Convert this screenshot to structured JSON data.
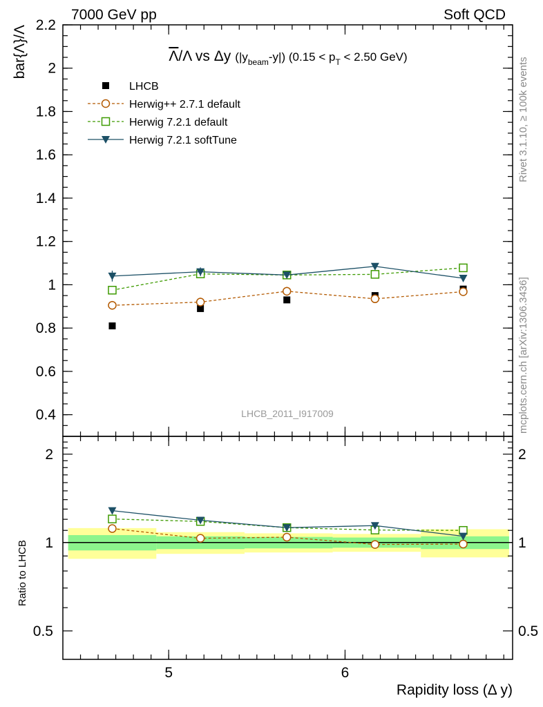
{
  "header": {
    "left": "7000 GeV pp",
    "right": "Soft QCD"
  },
  "side_labels": {
    "rivet": "Rivet 3.1.10, ≥ 100k events",
    "mcplots": "mcplots.cern.ch [arXiv:1306.3436]"
  },
  "watermark": "LHCB_2011_I917009",
  "colors": {
    "data": "#000000",
    "herwig_pp": "#b35900",
    "herwig_default": "#3d9a00",
    "herwig_soft": "#1c5066",
    "band_inner": "#8cf58c",
    "band_outer": "#ffff99"
  },
  "chart_data": {
    "type": "scatter",
    "title": {
      "ratio_bar": "Λ",
      "ratio_slash": "/Λ vs ",
      "delta": "Δy",
      "paren_open": "(|y",
      "sub_beam": "beam",
      "paren_mid": "-y|) (0.15 < p",
      "sub_T": "T",
      "paren_close": " < 2.50 GeV)"
    },
    "xlabel": "Rapidity loss (Δ y)",
    "ylabel": "bar{Λ}/Λ",
    "ratio_ylabel": "Ratio to LHCB",
    "xlim": [
      4.4,
      6.95
    ],
    "ylim": [
      0.3,
      2.2
    ],
    "ratio_ylim": [
      0.4,
      2.3
    ],
    "ratio_log_scale": true,
    "x_ticks": [
      5,
      6
    ],
    "x_tick_labels": [
      "5",
      "6"
    ],
    "y_ticks": [
      0.4,
      0.6,
      0.8,
      1,
      1.2,
      1.4,
      1.6,
      1.8,
      2,
      2.2
    ],
    "y_tick_labels": [
      "0.4",
      "0.6",
      "0.8",
      "1",
      "1.2",
      "1.4",
      "1.6",
      "1.8",
      "2",
      "2.2"
    ],
    "ratio_ticks": [
      0.5,
      1,
      2
    ],
    "ratio_tick_labels": [
      "0.5",
      "1",
      "2"
    ],
    "x": [
      4.68,
      5.18,
      5.67,
      6.17,
      6.67
    ],
    "bin_edges": [
      4.43,
      4.93,
      5.43,
      5.93,
      6.43,
      6.93
    ],
    "series": [
      {
        "name": "LHCB",
        "values": [
          0.81,
          0.89,
          0.93,
          0.95,
          0.98
        ],
        "errors": [
          0.01,
          0.01,
          0.01,
          0.01,
          0.01
        ],
        "marker": "square-filled",
        "line": "none"
      },
      {
        "name": "Herwig++ 2.7.1 default",
        "values": [
          0.905,
          0.92,
          0.97,
          0.935,
          0.968
        ],
        "errors": [
          0.02,
          0.02,
          0.02,
          0.015,
          0.015
        ],
        "ratio": [
          1.116,
          1.034,
          1.043,
          0.985,
          0.988
        ],
        "marker": "circle-open",
        "line": "dashed"
      },
      {
        "name": "Herwig 7.2.1 default",
        "values": [
          0.975,
          1.05,
          1.045,
          1.048,
          1.078
        ],
        "errors": [
          0.02,
          0.02,
          0.015,
          0.015,
          0.015
        ],
        "ratio": [
          1.203,
          1.18,
          1.124,
          1.103,
          1.1
        ],
        "marker": "square-open",
        "line": "dashed"
      },
      {
        "name": "Herwig 7.2.1 softTune",
        "values": [
          1.04,
          1.06,
          1.045,
          1.085,
          1.03
        ],
        "errors": [
          0.025,
          0.02,
          0.015,
          0.015,
          0.015
        ],
        "ratio": [
          1.284,
          1.191,
          1.124,
          1.142,
          1.051
        ],
        "marker": "triangle-down-filled",
        "line": "solid"
      }
    ],
    "ratio_band_inner": [
      [
        0.94,
        1.06
      ],
      [
        0.95,
        1.05
      ],
      [
        0.955,
        1.045
      ],
      [
        0.96,
        1.04
      ],
      [
        0.95,
        1.05
      ]
    ],
    "ratio_band_outer": [
      [
        0.88,
        1.12
      ],
      [
        0.915,
        1.085
      ],
      [
        0.925,
        1.075
      ],
      [
        0.93,
        1.07
      ],
      [
        0.89,
        1.11
      ]
    ],
    "legend_position": "top-left"
  }
}
